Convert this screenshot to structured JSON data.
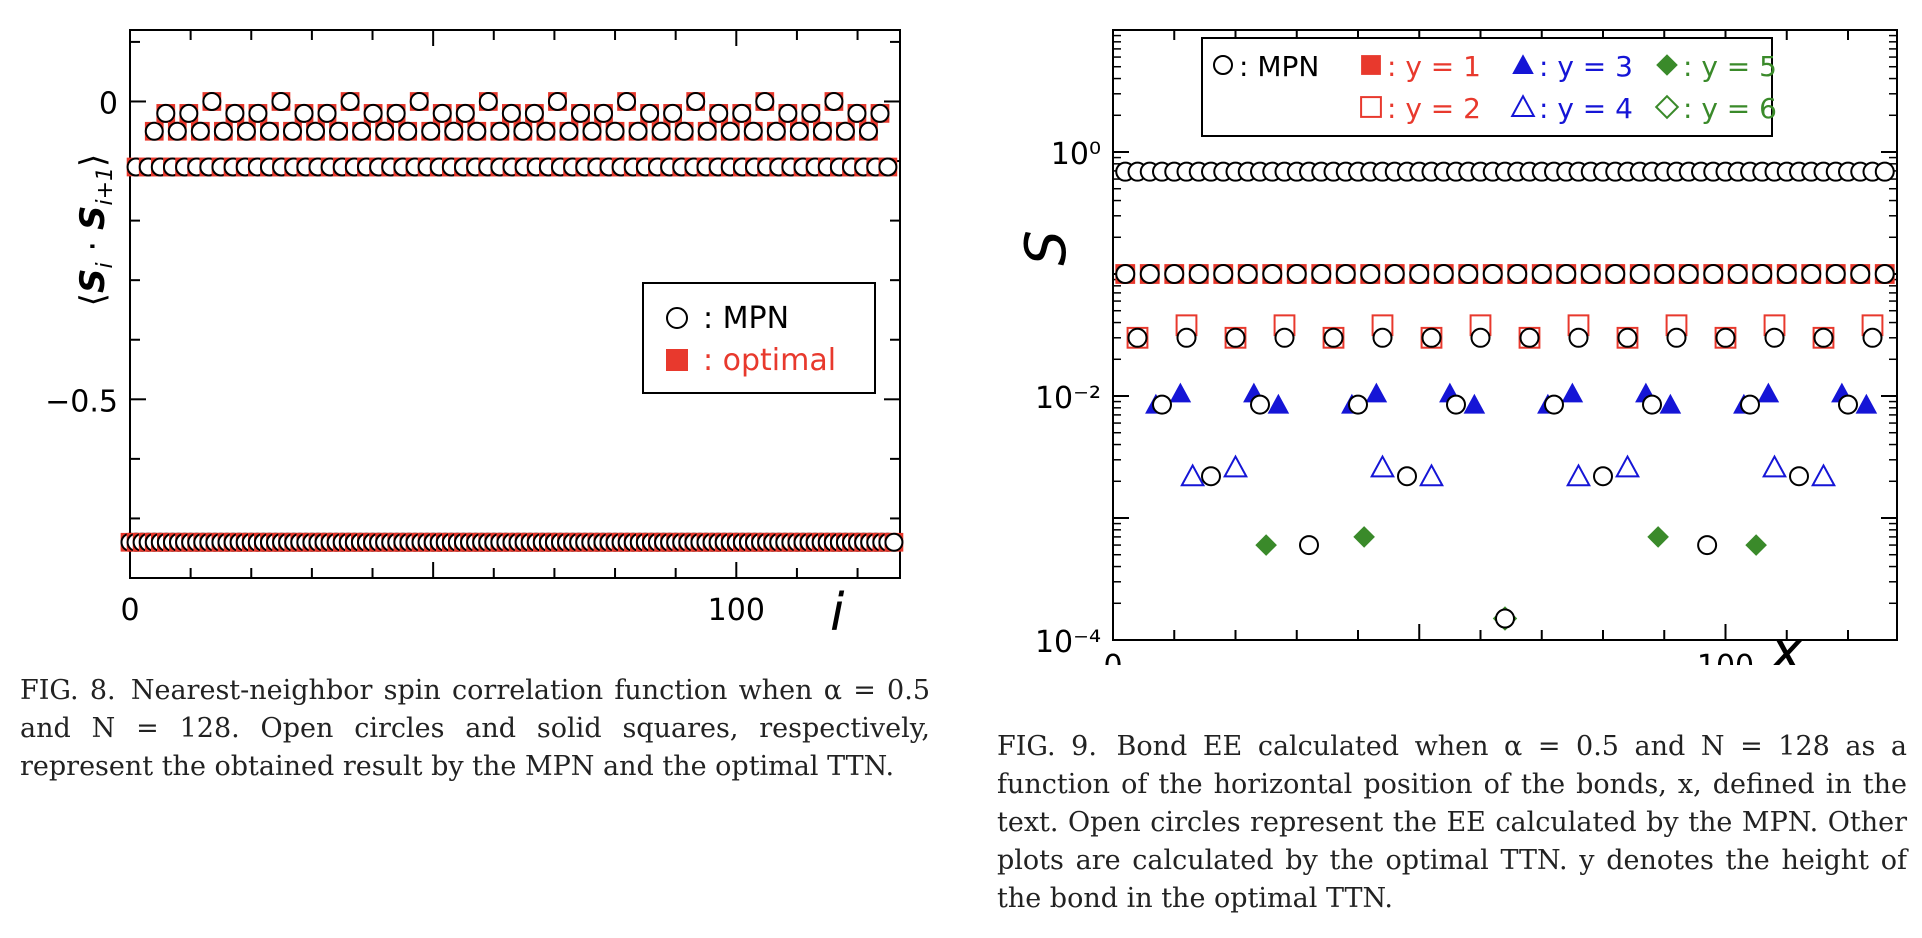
{
  "chart_data": [
    {
      "id": "fig8",
      "type": "scatter",
      "xlabel": "i",
      "ylabel": "⟨S_i · S_{i+1}⟩",
      "xlim": [
        0,
        127
      ],
      "ylim": [
        -0.8,
        0.12
      ],
      "xticks_labeled": [
        0,
        100
      ],
      "yticks_labeled": [
        0,
        -0.5
      ],
      "ytick_labels": [
        "0",
        "−0.5"
      ],
      "xtick_labels": [
        "0",
        "100"
      ],
      "grid": false,
      "legend_position": "right-middle",
      "legend": [
        {
          "label": ": MPN",
          "marker": "open-circle",
          "color": "#000000"
        },
        {
          "label": ": optimal",
          "marker": "filled-square",
          "color": "#e8392d"
        }
      ],
      "series": [
        {
          "name": "MPN",
          "marker": "open-circle",
          "color": "#000000",
          "values_description_key": "fig8_values"
        },
        {
          "name": "optimal",
          "marker": "filled-square",
          "color": "#e8392d",
          "values_description_key": "fig8_values"
        }
      ],
      "levels": {
        "low": -0.74,
        "mid": -0.11,
        "top_pattern": [
          -0.05,
          -0.02,
          -0.05,
          -0.02,
          -0.05,
          0.0,
          -0.05,
          -0.02,
          -0.05,
          -0.02,
          -0.05,
          0.0,
          -0.05,
          -0.02,
          -0.05,
          -0.02,
          -0.05,
          0.0,
          -0.05,
          -0.02,
          -0.05,
          -0.02,
          -0.05,
          0.0,
          -0.05,
          -0.02,
          -0.05,
          -0.02,
          -0.05,
          0.0,
          -0.05,
          -0.02,
          -0.05,
          -0.02,
          -0.05,
          0.0,
          -0.05,
          -0.02,
          -0.05,
          -0.02,
          -0.05,
          0.0,
          -0.05,
          -0.02,
          -0.05,
          -0.02,
          -0.05,
          0.0,
          -0.05,
          -0.02,
          -0.05,
          -0.02,
          -0.05,
          0.0,
          -0.05,
          -0.02,
          -0.05,
          -0.02,
          -0.05,
          0.0,
          -0.05,
          -0.02,
          -0.05,
          -0.02,
          -0.05,
          0.0
        ]
      },
      "caption_label": "FIG. 8.",
      "caption": "Nearest-neighbor spin correlation function when α = 0.5 and N = 128. Open circles and solid squares, respectively, represent the obtained result by the MPN and the optimal TTN."
    },
    {
      "id": "fig9",
      "type": "scatter",
      "xlabel": "x",
      "ylabel": "S",
      "yscale": "log",
      "xlim": [
        0,
        128
      ],
      "ylim": [
        0.0001,
        10
      ],
      "xtick_labels": [
        "0",
        "100"
      ],
      "ytick_labels": [
        "10⁰",
        "10⁻²",
        "10⁻⁴"
      ],
      "grid": false,
      "legend_position": "top",
      "legend": [
        {
          "label": ": MPN",
          "marker": "open-circle",
          "color": "#000000"
        },
        {
          "label": ": y = 1",
          "marker": "filled-square",
          "color": "#e8392d"
        },
        {
          "label": ": y = 2",
          "marker": "open-square",
          "color": "#e8392d"
        },
        {
          "label": ": y = 3",
          "marker": "filled-triangle",
          "color": "#1515d6"
        },
        {
          "label": ": y = 4",
          "marker": "open-triangle",
          "color": "#1515d6"
        },
        {
          "label": ": y = 5",
          "marker": "filled-diamond",
          "color": "#3a8a2a"
        },
        {
          "label": ": y = 6",
          "marker": "open-diamond",
          "color": "#3a8a2a"
        }
      ],
      "series": [
        {
          "name": "MPN level 0",
          "marker": "open-circle",
          "color": "#000000",
          "y": 0.69,
          "x_from": 2,
          "x_to": 126,
          "x_step": 2
        },
        {
          "name": "y=1",
          "marker": "filled-square",
          "color": "#e8392d",
          "y": 0.1,
          "x_from": 2,
          "x_to": 126,
          "x_step": 4
        },
        {
          "name": "MPN level 1",
          "marker": "open-circle",
          "color": "#000000",
          "y": 0.1,
          "x_from": 2,
          "x_to": 126,
          "x_step": 4
        },
        {
          "name": "y=2",
          "marker": "open-square",
          "color": "#e8392d",
          "y_values": [
            0.03,
            0.038
          ],
          "x_from": 4,
          "x_to": 126,
          "x_step": 8
        },
        {
          "name": "MPN level 2",
          "marker": "open-circle",
          "color": "#000000",
          "y": 0.03,
          "x_from": 4,
          "x_to": 126,
          "x_step": 8
        },
        {
          "name": "y=3",
          "marker": "filled-triangle",
          "color": "#1515d6",
          "x": [
            7,
            11,
            23,
            27,
            39,
            43,
            55,
            59,
            71,
            75,
            87,
            91,
            103,
            107,
            119,
            123
          ],
          "y": [
            0.0085,
            0.0105,
            0.0105,
            0.0085,
            0.0085,
            0.0105,
            0.0105,
            0.0085,
            0.0085,
            0.0105,
            0.0105,
            0.0085,
            0.0085,
            0.0105,
            0.0105,
            0.0085
          ]
        },
        {
          "name": "MPN level 3",
          "marker": "open-circle",
          "color": "#000000",
          "x": [
            8,
            24,
            40,
            56,
            72,
            88,
            104,
            120
          ],
          "y": 0.0085
        },
        {
          "name": "y=4",
          "marker": "open-triangle",
          "color": "#1515d6",
          "x": [
            13,
            20,
            44,
            52,
            76,
            84,
            108,
            116
          ],
          "y": [
            0.0022,
            0.0026,
            0.0026,
            0.0022,
            0.0022,
            0.0026,
            0.0026,
            0.0022
          ]
        },
        {
          "name": "MPN level 4",
          "marker": "open-circle",
          "color": "#000000",
          "x": [
            16,
            48,
            80,
            112
          ],
          "y": 0.0022
        },
        {
          "name": "y=5",
          "marker": "filled-diamond",
          "color": "#3a8a2a",
          "x": [
            25,
            41,
            89,
            105
          ],
          "y": [
            0.0006,
            0.0007,
            0.0007,
            0.0006
          ]
        },
        {
          "name": "MPN level 5",
          "marker": "open-circle",
          "color": "#000000",
          "x": [
            32,
            97
          ],
          "y": 0.0006
        },
        {
          "name": "y=6",
          "marker": "open-diamond",
          "color": "#3a8a2a",
          "x": [
            64
          ],
          "y": 0.00015
        },
        {
          "name": "MPN level 6",
          "marker": "open-circle",
          "color": "#000000",
          "x": [
            64
          ],
          "y": 0.00015
        }
      ],
      "caption_label": "FIG. 9.",
      "caption": "Bond EE calculated when α = 0.5 and N = 128 as a function of the horizontal position of the bonds, x, defined in the text. Open circles represent the EE calculated by the MPN. Other plots are calculated by the optimal TTN. y denotes the height of the bond in the optimal TTN."
    }
  ]
}
